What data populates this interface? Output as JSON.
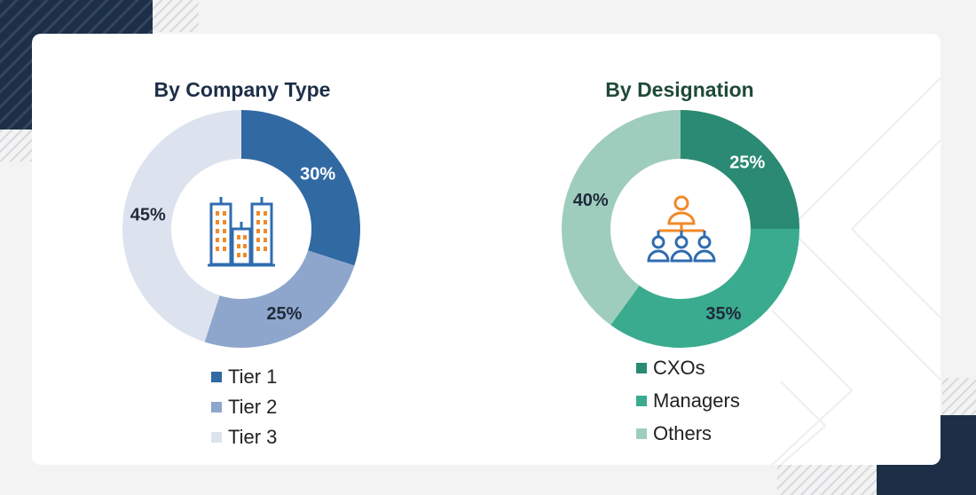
{
  "colors": {
    "navy": "#1d2f47",
    "tier1": "#3169a3",
    "tier2": "#8ea6cc",
    "tier3": "#dde3ee",
    "cxo": "#2a8a73",
    "managers": "#3aab8f",
    "others": "#9fcdbd",
    "icon_blue": "#2f6cb0",
    "icon_orange": "#f08a2a"
  },
  "chart_data": [
    {
      "type": "pie",
      "variant": "donut",
      "title": "By Company Type",
      "categories": [
        "Tier 1",
        "Tier 2",
        "Tier 3"
      ],
      "values": [
        30,
        25,
        45
      ],
      "labels": [
        "30%",
        "25%",
        "45%"
      ],
      "colors": [
        "#3169a3",
        "#8ea6cc",
        "#dde3ee"
      ],
      "label_colors": [
        "#ffffff",
        "#1f2a3a",
        "#1f2a3a"
      ],
      "legend": "bottom",
      "center_icon": "buildings-icon",
      "title_color": "#1d2f47"
    },
    {
      "type": "pie",
      "variant": "donut",
      "title": "By Designation",
      "categories": [
        "CXOs",
        "Managers",
        "Others"
      ],
      "values": [
        25,
        35,
        40
      ],
      "labels": [
        "25%",
        "35%",
        "40%"
      ],
      "colors": [
        "#2a8a73",
        "#3aab8f",
        "#9fcdbd"
      ],
      "label_colors": [
        "#ffffff",
        "#1f2a3a",
        "#1f2a3a"
      ],
      "legend": "bottom",
      "center_icon": "hierarchy-icon",
      "title_color": "#1f4a37"
    }
  ]
}
